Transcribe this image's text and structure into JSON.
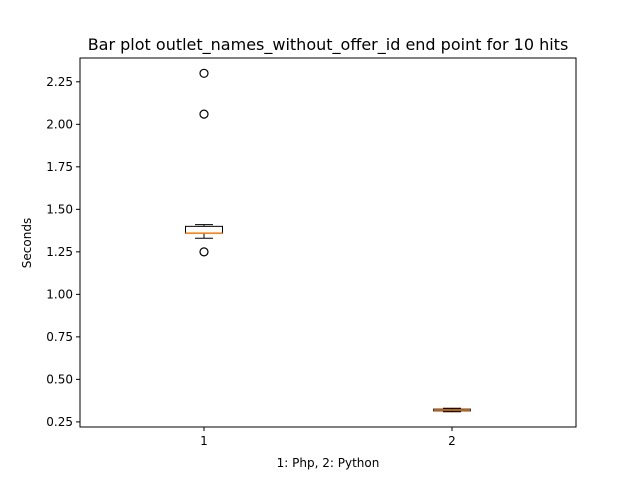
{
  "chart_data": {
    "type": "box",
    "title": "Bar plot outlet_names_without_offer_id end point for 10 hits",
    "xlabel": "1: Php, 2: Python",
    "ylabel": "Seconds",
    "categories": [
      "1",
      "2"
    ],
    "ylim": [
      0.22,
      2.39
    ],
    "yticks": [
      "0.25",
      "0.50",
      "0.75",
      "1.00",
      "1.25",
      "1.50",
      "1.75",
      "2.00",
      "2.25"
    ],
    "grid": false,
    "boxes": [
      {
        "label": "1",
        "whisker_low": 1.33,
        "q1": 1.36,
        "median": 1.36,
        "q3": 1.4,
        "whisker_high": 1.41,
        "fliers": [
          1.25,
          2.06,
          2.3
        ]
      },
      {
        "label": "2",
        "whisker_low": 0.31,
        "q1": 0.315,
        "median": 0.32,
        "q3": 0.325,
        "whisker_high": 0.33,
        "fliers": []
      }
    ],
    "colors": {
      "median": "#ff7f0e",
      "box": "#000000"
    }
  }
}
